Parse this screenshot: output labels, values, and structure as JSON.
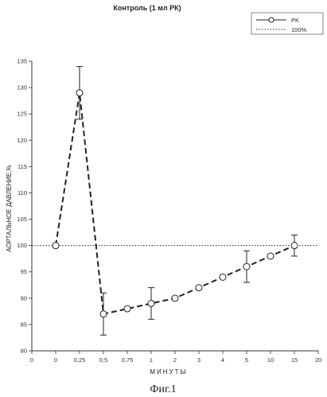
{
  "chart_data": {
    "type": "line",
    "title": "Контроль (1 мл РК)",
    "xlabel": "МИНУТЫ",
    "ylabel": "АОРТАЛЬНОЕ ДАВЛЕНИЕ,%",
    "caption": "Фиг.1",
    "categories": [
      "0",
      "0",
      "0,25",
      "0,5",
      "0,75",
      "1",
      "2",
      "3",
      "4",
      "5",
      "10",
      "15",
      "20"
    ],
    "ylim": [
      80,
      135
    ],
    "yticks": [
      80,
      85,
      90,
      95,
      100,
      105,
      110,
      115,
      120,
      125,
      130,
      135
    ],
    "grid": false,
    "legend_position": "top-right",
    "series": [
      {
        "name": "РК",
        "style": "dashed-with-circles",
        "points": [
          {
            "x": "0",
            "y": 100
          },
          {
            "x": "0,25",
            "y": 129,
            "err": 5
          },
          {
            "x": "0,5",
            "y": 87,
            "err": 4
          },
          {
            "x": "0,75",
            "y": 88
          },
          {
            "x": "1",
            "y": 89,
            "err": 3
          },
          {
            "x": "2",
            "y": 90
          },
          {
            "x": "3",
            "y": 92
          },
          {
            "x": "4",
            "y": 94
          },
          {
            "x": "5",
            "y": 96,
            "err": 3
          },
          {
            "x": "10",
            "y": 98
          },
          {
            "x": "15",
            "y": 100,
            "err": 2
          }
        ]
      },
      {
        "name": "100%",
        "style": "dotted",
        "value": 100
      }
    ]
  },
  "colors": {
    "line": "#222222",
    "axis": "#333333",
    "background": "#ffffff"
  }
}
